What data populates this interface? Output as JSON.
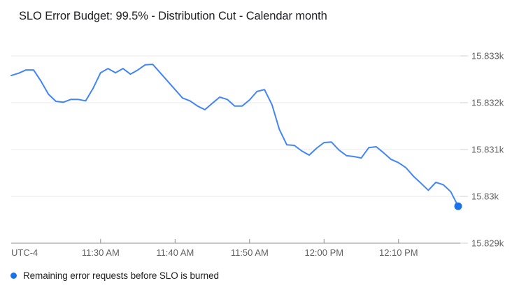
{
  "title": "SLO Error Budget: 99.5% - Distribution Cut - Calendar month",
  "legend": {
    "series_label": "Remaining error requests before SLO is burned"
  },
  "axes": {
    "timezone_label": "UTC-4",
    "x_tick_labels": [
      "11:30 AM",
      "11:40 AM",
      "11:50 AM",
      "12:00 PM",
      "12:10 PM"
    ],
    "y_tick_labels": [
      "15.833k",
      "15.832k",
      "15.831k",
      "15.83k",
      "15.829k"
    ]
  },
  "colors": {
    "line": "#4285f4",
    "point": "#1a73e8",
    "grid": "#e9e9e9",
    "axis": "#8f8f8f",
    "right_tick": "#d2d2d2",
    "axis_label": "#616161",
    "title_text": "#202124",
    "legend_text": "#212121",
    "background": "#ffffff"
  },
  "chart_data": {
    "type": "line",
    "title": "SLO Error Budget: 99.5% - Distribution Cut - Calendar month",
    "xlabel": "time (UTC-4)",
    "ylabel": "Remaining error requests",
    "ylim": [
      15829,
      15833
    ],
    "grid": "horizontal",
    "legend_position": "bottom-left",
    "last_point_marker": true,
    "x": [
      "11:18",
      "11:19",
      "11:20",
      "11:21",
      "11:22",
      "11:23",
      "11:24",
      "11:25",
      "11:26",
      "11:27",
      "11:28",
      "11:29",
      "11:30",
      "11:31",
      "11:32",
      "11:33",
      "11:34",
      "11:35",
      "11:36",
      "11:37",
      "11:38",
      "11:39",
      "11:40",
      "11:41",
      "11:42",
      "11:43",
      "11:44",
      "11:45",
      "11:46",
      "11:47",
      "11:48",
      "11:49",
      "11:50",
      "11:51",
      "11:52",
      "11:53",
      "11:54",
      "11:55",
      "11:56",
      "11:57",
      "11:58",
      "11:59",
      "12:00",
      "12:01",
      "12:02",
      "12:03",
      "12:04",
      "12:05",
      "12:06",
      "12:07",
      "12:08",
      "12:09",
      "12:10",
      "12:11",
      "12:12",
      "12:13",
      "12:14",
      "12:15",
      "12:16",
      "12:17",
      "12:18"
    ],
    "series": [
      {
        "name": "Remaining error requests before SLO is burned",
        "values": [
          15832.58,
          15832.63,
          15832.7,
          15832.7,
          15832.46,
          15832.18,
          15832.03,
          15832.01,
          15832.07,
          15832.07,
          15832.04,
          15832.31,
          15832.64,
          15832.73,
          15832.64,
          15832.73,
          15832.61,
          15832.7,
          15832.81,
          15832.82,
          15832.64,
          15832.46,
          15832.28,
          15832.1,
          15832.04,
          15831.93,
          15831.85,
          15831.99,
          15832.12,
          15832.07,
          15831.93,
          15831.93,
          15832.06,
          15832.24,
          15832.28,
          15831.96,
          15831.43,
          15831.1,
          15831.09,
          15830.97,
          15830.88,
          15831.03,
          15831.15,
          15831.16,
          15830.99,
          15830.87,
          15830.85,
          15830.82,
          15831.04,
          15831.06,
          15830.93,
          15830.79,
          15830.72,
          15830.61,
          15830.43,
          15830.28,
          15830.13,
          15830.3,
          15830.25,
          15830.1,
          15829.79
        ]
      }
    ],
    "y_ticks": [
      {
        "label": "15.833k",
        "value": 15833
      },
      {
        "label": "15.832k",
        "value": 15832
      },
      {
        "label": "15.831k",
        "value": 15831
      },
      {
        "label": "15.83k",
        "value": 15830
      },
      {
        "label": "15.829k",
        "value": 15829
      }
    ],
    "x_ticks": [
      {
        "label": "11:30 AM",
        "time": "11:30"
      },
      {
        "label": "11:40 AM",
        "time": "11:40"
      },
      {
        "label": "11:50 AM",
        "time": "11:50"
      },
      {
        "label": "12:00 PM",
        "time": "12:00"
      },
      {
        "label": "12:10 PM",
        "time": "12:10"
      }
    ]
  }
}
